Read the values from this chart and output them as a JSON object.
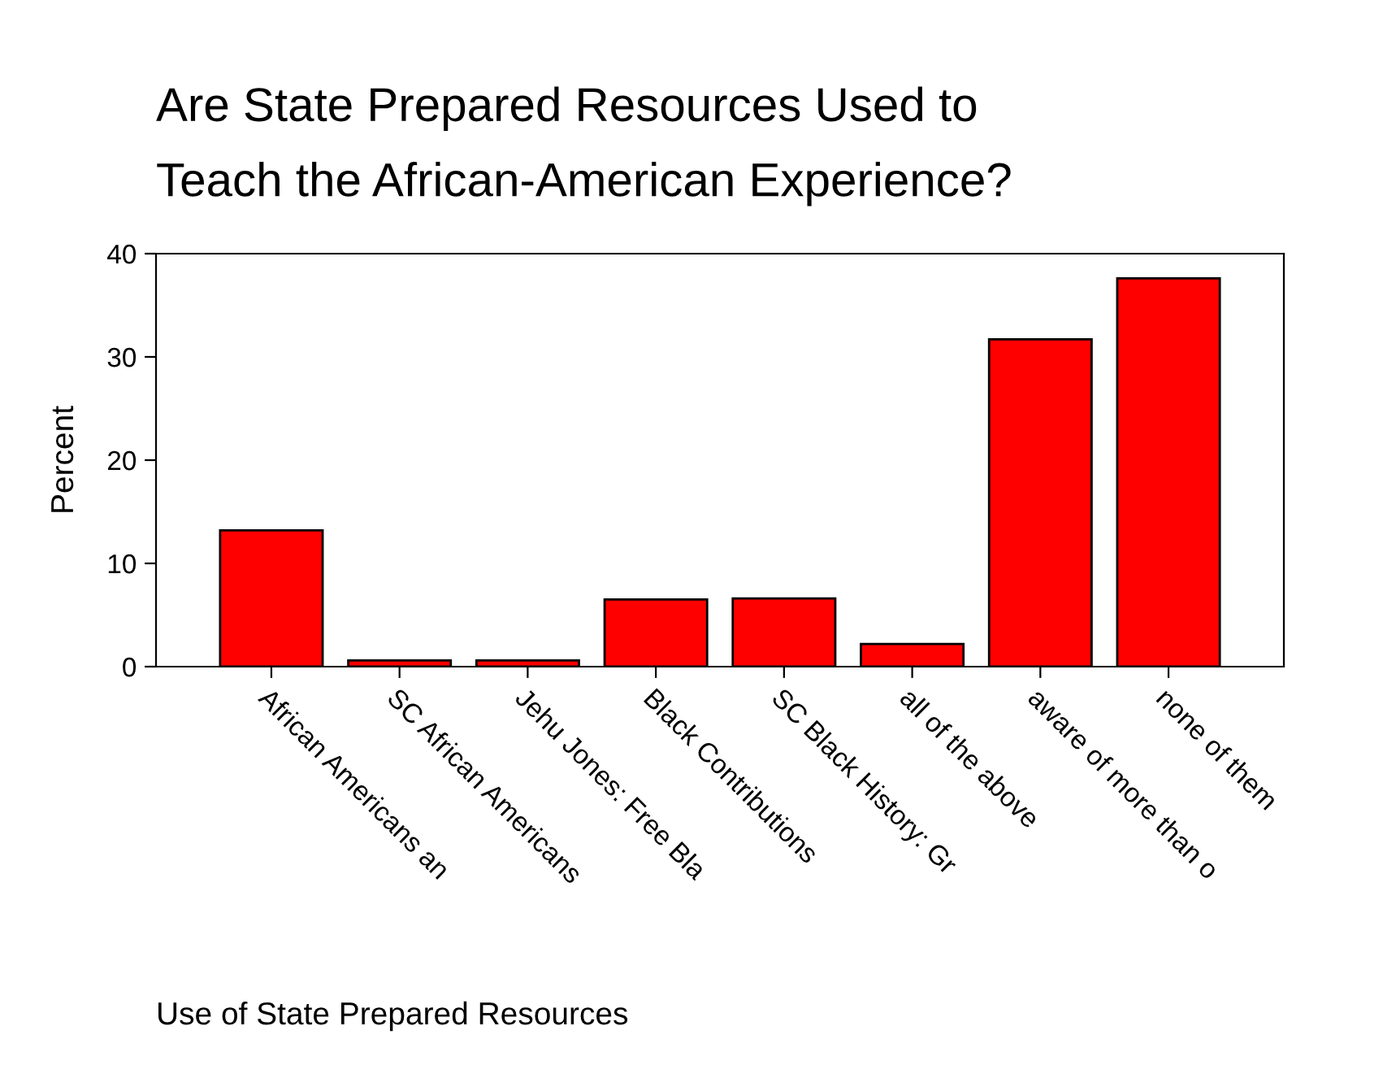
{
  "chart_data": {
    "type": "bar",
    "title": "Are State Prepared Resources Used to\nTeach the African-American Experience?",
    "xlabel": "Use of State Prepared Resources",
    "ylabel": "Percent",
    "categories": [
      "African Americans an",
      "SC African Americans",
      "Jehu Jones: Free Bla",
      "Black Contributions",
      "SC Black History: Gr",
      "all of the above",
      "aware of more than o",
      "none of them"
    ],
    "values": [
      13.2,
      0.6,
      0.6,
      6.5,
      6.6,
      2.2,
      31.7,
      37.6
    ],
    "color": "#ff0000",
    "ylim": [
      0,
      40
    ],
    "yticks": [
      0,
      10,
      20,
      30,
      40
    ],
    "grid": false,
    "legend": false
  }
}
